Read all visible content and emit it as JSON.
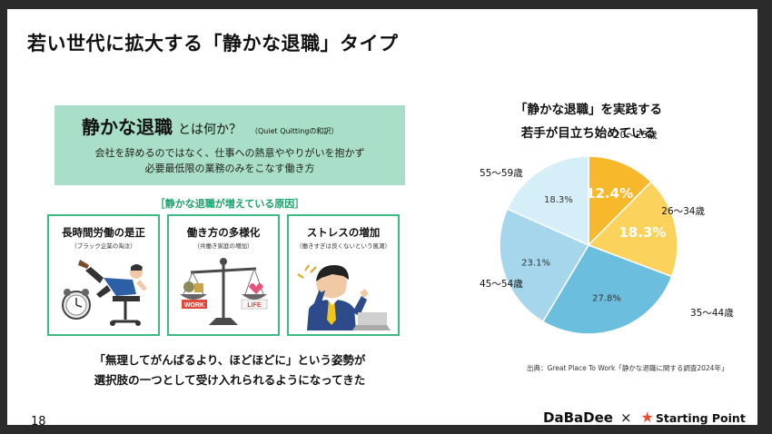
{
  "slide": {
    "title": "若い世代に拡大する「静かな退職」タイプ",
    "page_number": "18"
  },
  "definition": {
    "term": "静かな退職",
    "question": "とは何か？",
    "note": "（Quiet Quittingの和訳）",
    "line1": "会社を辞めるのではなく、仕事への熱意ややりがいを抱かず",
    "line2": "必要最低限の業務のみをこなす働き方"
  },
  "reasons": {
    "heading": "［静かな退職が増えている原因］",
    "items": [
      {
        "title": "長時間労働の是正",
        "sub": "（ブラック企業の淘汰）",
        "icon": "overworked-worker-icon"
      },
      {
        "title": "働き方の多様化",
        "sub": "（共働き家庭の増加）",
        "icon": "work-life-balance-scale-icon"
      },
      {
        "title": "ストレスの増加",
        "sub": "（働きすぎは良くないという風潮）",
        "icon": "stressed-worker-icon"
      }
    ],
    "scale_labels": {
      "work": "WORK",
      "life": "LIFE"
    }
  },
  "conclusion": {
    "line1": "「無理してがんばるより、ほどほどに」という姿勢が",
    "line2": "選択肢の一つとして受け入れられるようになってきた"
  },
  "pie": {
    "title_line1": "「静かな退職」を実践する",
    "title_line2": "若手が目立ち始めている",
    "source": "出典：Great Place To Work「静かな退職に関する調査2024年」"
  },
  "chart_data": {
    "type": "pie",
    "title": "「静かな退職」を実践する若手が目立ち始めている",
    "slices": [
      {
        "label": "20～25歳",
        "value": 12.4,
        "display": "12.4%",
        "color": "#f7b92b"
      },
      {
        "label": "26～34歳",
        "value": 18.3,
        "display": "18.3%",
        "color": "#fbd35c"
      },
      {
        "label": "35～44歳",
        "value": 27.8,
        "display": "27.8%",
        "color": "#6cbedf"
      },
      {
        "label": "45～54歳",
        "value": 23.1,
        "display": "23.1%",
        "color": "#a5d6ec"
      },
      {
        "label": "55～59歳",
        "value": 18.3,
        "display": "18.3%",
        "color": "#d6eef8"
      }
    ]
  },
  "footer": {
    "brand1": "DaBaDee",
    "cross": "×",
    "brand2": "Starting Point",
    "star": "★"
  }
}
